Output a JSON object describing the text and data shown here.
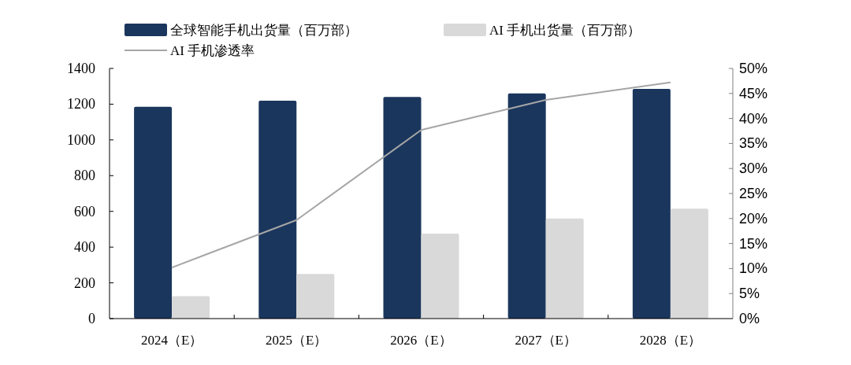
{
  "chart_data": {
    "type": "bar",
    "categories": [
      "2024（E）",
      "2025（E）",
      "2026（E）",
      "2027（E）",
      "2028（E）"
    ],
    "series": [
      {
        "name": "全球智能手机出货量（百万部）",
        "color": "#1a365d",
        "values": [
          1185,
          1220,
          1240,
          1260,
          1285
        ]
      },
      {
        "name": "AI 手机出货量（百万部）",
        "color": "#d9d9d9",
        "values": [
          125,
          250,
          475,
          560,
          615
        ]
      },
      {
        "name": "AI 手机渗透率",
        "type": "line",
        "axis": "y2",
        "color": "#a6a6a6",
        "values": [
          10.2,
          19.7,
          37.7,
          43.7,
          47.2
        ]
      }
    ],
    "ylim": [
      0,
      1400
    ],
    "yticks": [
      0,
      200,
      400,
      600,
      800,
      1000,
      1200,
      1400
    ],
    "y2lim": [
      0,
      50
    ],
    "y2ticks": [
      {
        "value": 0,
        "label": "0%"
      },
      {
        "value": 5,
        "label": "5%"
      },
      {
        "value": 10,
        "label": "10%"
      },
      {
        "value": 15,
        "label": "15%"
      },
      {
        "value": 20,
        "label": "20%"
      },
      {
        "value": 25,
        "label": "25%"
      },
      {
        "value": 30,
        "label": "30%"
      },
      {
        "value": 35,
        "label": "35%"
      },
      {
        "value": 40,
        "label": "40%"
      },
      {
        "value": 45,
        "label": "45%"
      },
      {
        "value": 50,
        "label": "50%"
      }
    ],
    "legend": "top",
    "grid": false
  }
}
